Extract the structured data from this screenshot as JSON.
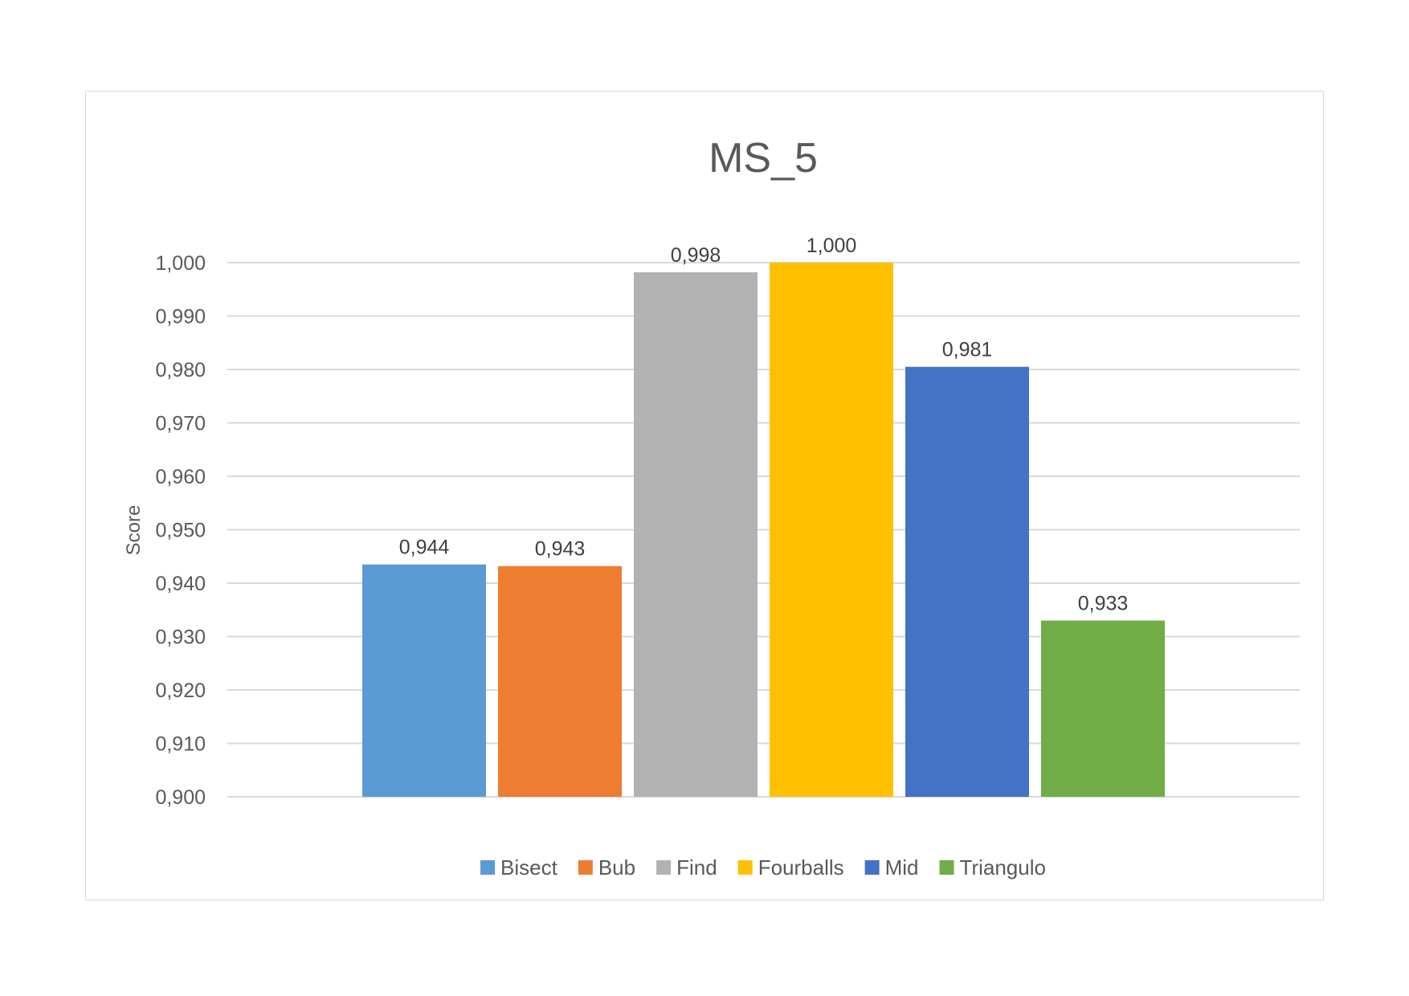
{
  "chart_data": {
    "type": "bar",
    "title": "MS_5",
    "ylabel": "Score",
    "xlabel": "",
    "ylim": [
      0.9,
      1.0
    ],
    "yticks": [
      "0,900",
      "0,910",
      "0,920",
      "0,930",
      "0,940",
      "0,950",
      "0,960",
      "0,970",
      "0,980",
      "0,990",
      "1,000"
    ],
    "grid": true,
    "legend_position": "bottom",
    "series": [
      {
        "name": "Bisect",
        "value": 0.9435,
        "label": "0,944",
        "color": "#5B9BD5"
      },
      {
        "name": "Bub",
        "value": 0.9432,
        "label": "0,943",
        "color": "#ED7D31"
      },
      {
        "name": "Find",
        "value": 0.9982,
        "label": "0,998",
        "color": "#B2B2B2"
      },
      {
        "name": "Fourballs",
        "value": 1.0,
        "label": "1,000",
        "color": "#FFC000"
      },
      {
        "name": "Mid",
        "value": 0.9805,
        "label": "0,981",
        "color": "#4472C4"
      },
      {
        "name": "Triangulo",
        "value": 0.933,
        "label": "0,933",
        "color": "#70AD47"
      }
    ]
  }
}
